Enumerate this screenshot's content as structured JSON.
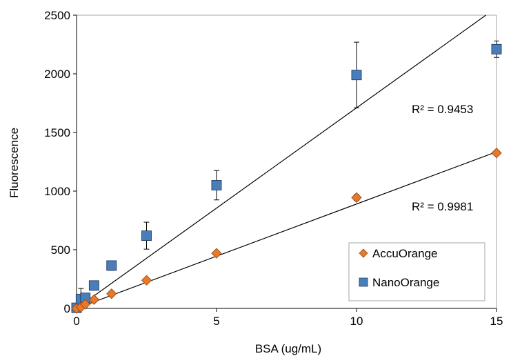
{
  "chart_data": {
    "type": "scatter",
    "xlabel": "BSA (ug/mL)",
    "ylabel": "Fluorescence",
    "xlim": [
      0,
      15
    ],
    "ylim": [
      0,
      2500
    ],
    "x_ticks": [
      "0",
      "5",
      "10",
      "15"
    ],
    "y_ticks": [
      "0",
      "500",
      "1000",
      "1500",
      "2000",
      "2500"
    ],
    "grid": false,
    "legend_position": "bottom-right",
    "series": [
      {
        "name": "AccuOrange",
        "marker": "diamond",
        "color": "#E8782A",
        "x": [
          0,
          0.156,
          0.3125,
          0.625,
          1.25,
          2.5,
          5,
          10,
          15
        ],
        "y": [
          0,
          10,
          35,
          75,
          125,
          240,
          470,
          945,
          1325
        ],
        "error": [
          0,
          0,
          0,
          0,
          0,
          0,
          0,
          25,
          0
        ],
        "trendline": {
          "slope": 89.0,
          "intercept": 0,
          "r2_label": "R² = 0.9981"
        }
      },
      {
        "name": "NanoOrange",
        "marker": "square",
        "color": "#4A7EBB",
        "x": [
          0,
          0.156,
          0.3125,
          0.625,
          1.25,
          2.5,
          5,
          10,
          15
        ],
        "y": [
          5,
          80,
          90,
          195,
          365,
          620,
          1050,
          1990,
          2210
        ],
        "error": [
          0,
          90,
          0,
          0,
          40,
          115,
          125,
          280,
          70
        ],
        "trendline": {
          "slope": 171.0,
          "intercept": 0,
          "r2_label": "R² = 0.9453"
        }
      }
    ]
  }
}
